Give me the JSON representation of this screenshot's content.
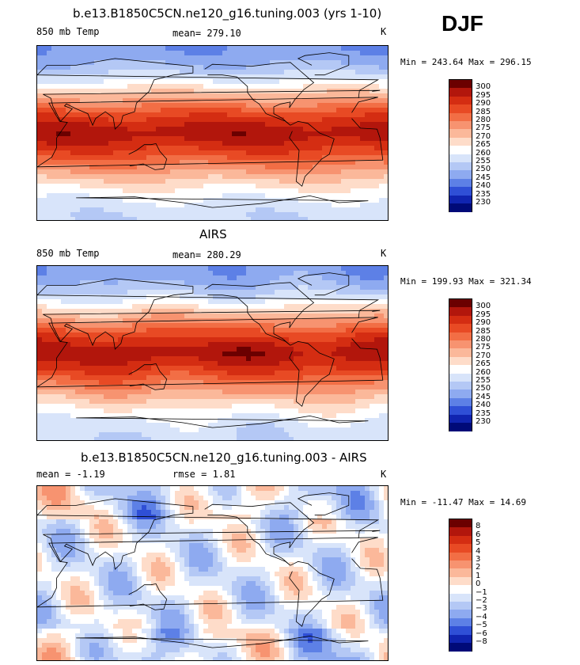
{
  "season": "DJF",
  "panels": [
    {
      "title": "b.e13.B1850C5CN.ne120_g16.tuning.003 (yrs 1-10)",
      "left_label": "850 mb Temp",
      "middle_label": "mean= 279.10",
      "unit": "K",
      "minmax": "Min = 243.64 Max = 296.15",
      "field": "model"
    },
    {
      "title": "AIRS",
      "left_label": "850 mb Temp",
      "middle_label": "mean= 280.29",
      "unit": "K",
      "minmax": "Min = 199.93 Max = 321.34",
      "field": "obs"
    },
    {
      "title": "b.e13.B1850C5CN.ne120_g16.tuning.003 - AIRS",
      "left_label": "mean =   -1.19",
      "middle_label": "rmse =    1.81",
      "unit": "K",
      "minmax": "Min = -11.47 Max =  14.69",
      "field": "diff"
    }
  ],
  "colorbars": [
    {
      "labels": [
        "300",
        "295",
        "290",
        "285",
        "280",
        "275",
        "270",
        "265",
        "260",
        "255",
        "250",
        "245",
        "240",
        "235",
        "230"
      ],
      "colors": [
        "#6b0000",
        "#b2160c",
        "#d42d12",
        "#e84a24",
        "#f26e45",
        "#f79370",
        "#fbb89a",
        "#fedcc9",
        "#ffffff",
        "#d8e4fa",
        "#b4c8f5",
        "#8eaaf0",
        "#5d80e6",
        "#2f4fd6",
        "#1024b0",
        "#000a78"
      ]
    },
    {
      "labels": [
        "300",
        "295",
        "290",
        "285",
        "280",
        "275",
        "270",
        "265",
        "260",
        "255",
        "250",
        "245",
        "240",
        "235",
        "230"
      ],
      "colors": [
        "#6b0000",
        "#b2160c",
        "#d42d12",
        "#e84a24",
        "#f26e45",
        "#f79370",
        "#fbb89a",
        "#fedcc9",
        "#ffffff",
        "#d8e4fa",
        "#b4c8f5",
        "#8eaaf0",
        "#5d80e6",
        "#2f4fd6",
        "#1024b0",
        "#000a78"
      ]
    },
    {
      "labels": [
        "8",
        "6",
        "5",
        "4",
        "3",
        "2",
        "1",
        "0",
        "−1",
        "−2",
        "−3",
        "−4",
        "−5",
        "−6",
        "−8"
      ],
      "colors": [
        "#6b0000",
        "#b2160c",
        "#d42d12",
        "#e84a24",
        "#f26e45",
        "#f79370",
        "#fbb89a",
        "#fedcc9",
        "#ffffff",
        "#d8e4fa",
        "#b4c8f5",
        "#8eaaf0",
        "#5d80e6",
        "#2f4fd6",
        "#1024b0",
        "#000a78"
      ]
    }
  ]
}
